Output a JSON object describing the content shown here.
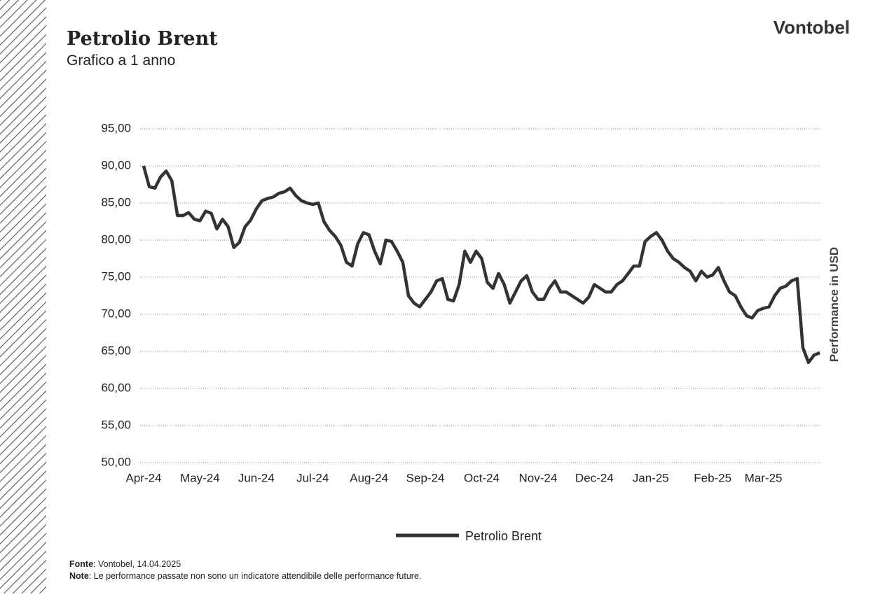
{
  "brand": "Vontobel",
  "chart_data": {
    "type": "line",
    "title": "Petrolio Brent",
    "subtitle": "Grafico a 1 anno",
    "y_label": "Performance in USD",
    "categories": [
      "Apr-24",
      null,
      null,
      null,
      null,
      null,
      null,
      null,
      null,
      null,
      "May-24",
      null,
      null,
      null,
      null,
      null,
      null,
      null,
      null,
      null,
      "Jun-24",
      null,
      null,
      null,
      null,
      null,
      null,
      null,
      null,
      null,
      "Jul-24",
      null,
      null,
      null,
      null,
      null,
      null,
      null,
      null,
      null,
      "Aug-24",
      null,
      null,
      null,
      null,
      null,
      null,
      null,
      null,
      null,
      "Sep-24",
      null,
      null,
      null,
      null,
      null,
      null,
      null,
      null,
      null,
      "Oct-24",
      null,
      null,
      null,
      null,
      null,
      null,
      null,
      null,
      null,
      "Nov-24",
      null,
      null,
      null,
      null,
      null,
      null,
      null,
      null,
      null,
      "Dec-24",
      null,
      null,
      null,
      null,
      null,
      null,
      null,
      null,
      null,
      "Jan-25",
      null,
      null,
      null,
      null,
      null,
      null,
      null,
      null,
      null,
      null,
      "Feb-25",
      null,
      null,
      null,
      null,
      null,
      null,
      null,
      null,
      "Mar-25",
      null,
      null,
      null,
      null,
      null,
      null,
      null,
      null,
      null,
      null
    ],
    "series": [
      {
        "name": "Petrolio Brent",
        "color": "#333333",
        "values": [
          90.0,
          87.2,
          87.0,
          88.5,
          89.3,
          88.0,
          83.3,
          83.3,
          83.7,
          82.8,
          82.6,
          83.9,
          83.6,
          81.5,
          82.8,
          81.8,
          79.0,
          79.7,
          81.8,
          82.7,
          84.2,
          85.3,
          85.6,
          85.8,
          86.3,
          86.5,
          87.0,
          86.0,
          85.3,
          85.0,
          84.8,
          85.0,
          82.5,
          81.3,
          80.5,
          79.3,
          77.0,
          76.5,
          79.5,
          81.0,
          80.7,
          78.5,
          76.8,
          80.0,
          79.8,
          78.5,
          77.0,
          72.5,
          71.5,
          71.0,
          72.0,
          73.0,
          74.5,
          74.8,
          72.0,
          71.8,
          74.0,
          78.5,
          77.0,
          78.5,
          77.5,
          74.3,
          73.5,
          75.5,
          74.0,
          71.5,
          73.0,
          74.5,
          75.2,
          73.0,
          72.0,
          72.0,
          73.5,
          74.5,
          73.0,
          73.0,
          72.5,
          72.0,
          71.5,
          72.3,
          74.0,
          73.5,
          73.0,
          73.0,
          74.0,
          74.5,
          75.5,
          76.5,
          76.5,
          79.8,
          80.5,
          81.0,
          80.0,
          78.5,
          77.5,
          77.0,
          76.3,
          75.8,
          74.5,
          75.8,
          75.0,
          75.3,
          76.3,
          74.5,
          73.0,
          72.5,
          71.0,
          69.8,
          69.5,
          70.5,
          70.8,
          71.0,
          72.5,
          73.5,
          73.8,
          74.5,
          74.8,
          65.5,
          63.5,
          64.5,
          64.8
        ]
      }
    ],
    "ylim": [
      50,
      95
    ],
    "yticks": [
      {
        "value": 50,
        "label": "50,00"
      },
      {
        "value": 55,
        "label": "55,00"
      },
      {
        "value": 60,
        "label": "60,00"
      },
      {
        "value": 65,
        "label": "65,00"
      },
      {
        "value": 70,
        "label": "70,00"
      },
      {
        "value": 75,
        "label": "75,00"
      },
      {
        "value": 80,
        "label": "80,00"
      },
      {
        "value": 85,
        "label": "85,00"
      },
      {
        "value": 90,
        "label": "90,00"
      },
      {
        "value": 95,
        "label": "95,00"
      }
    ],
    "grid": true
  },
  "footer": [
    {
      "label": "Fonte",
      "text": ": Vontobel, 14.04.2025"
    },
    {
      "label": "Note",
      "text": ": Le performance passate non sono un indicatore attendibile delle performance future."
    }
  ]
}
